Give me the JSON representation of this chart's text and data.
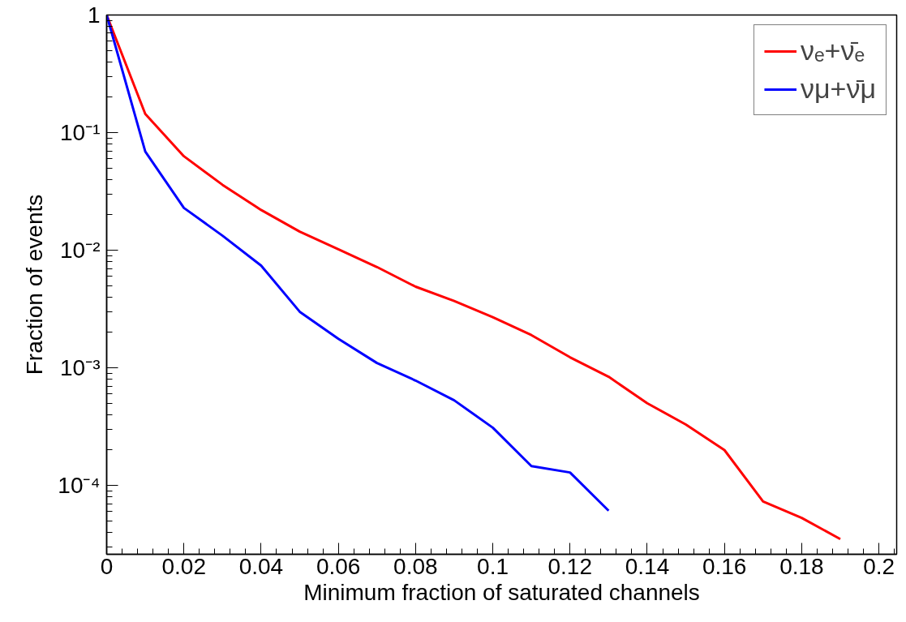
{
  "chart_data": {
    "type": "line",
    "xlabel": "Minimum fraction of saturated channels",
    "ylabel": "Fraction of events",
    "log": "y",
    "grid": false,
    "legend": "top right",
    "line_style": "solid",
    "marker": "none",
    "xlim": [
      0,
      0.2046
    ],
    "ylim": [
      2.6e-05,
      1
    ],
    "xticks": [
      0,
      0.02,
      0.04,
      0.06,
      0.08,
      0.1,
      0.12,
      0.14,
      0.16,
      0.18,
      0.2
    ],
    "yticks": [
      {
        "value": 1,
        "label": "1"
      },
      {
        "value": 0.1,
        "label": "10⁻¹"
      },
      {
        "value": 0.01,
        "label": "10⁻²"
      },
      {
        "value": 0.001,
        "label": "10⁻³"
      },
      {
        "value": 0.0001,
        "label": "10⁻⁴"
      }
    ],
    "series": [
      {
        "name": "νₑ+ν̄ₑ",
        "color": "#ff0000",
        "x": [
          0,
          0.01,
          0.02,
          0.03,
          0.04,
          0.05,
          0.06,
          0.07,
          0.08,
          0.09,
          0.1,
          0.11,
          0.12,
          0.13,
          0.14,
          0.15,
          0.16,
          0.17,
          0.18,
          0.19
        ],
        "values": [
          1,
          0.144,
          0.063,
          0.036,
          0.022,
          0.0144,
          0.0102,
          0.0072,
          0.0049,
          0.0037,
          0.0027,
          0.0019,
          0.00123,
          0.00084,
          0.0005,
          0.00033,
          0.0002,
          7.3e-05,
          5.3e-05,
          3.5e-05
        ]
      },
      {
        "name": "νμ+ν̄μ",
        "color": "#0000ff",
        "x": [
          0,
          0.01,
          0.02,
          0.03,
          0.04,
          0.05,
          0.06,
          0.07,
          0.08,
          0.09,
          0.1,
          0.11,
          0.12,
          0.13
        ],
        "values": [
          1,
          0.069,
          0.0229,
          0.0133,
          0.0074,
          0.003,
          0.00177,
          0.0011,
          0.00078,
          0.00053,
          0.00031,
          0.000146,
          0.000129,
          6.1e-05
        ]
      }
    ]
  }
}
